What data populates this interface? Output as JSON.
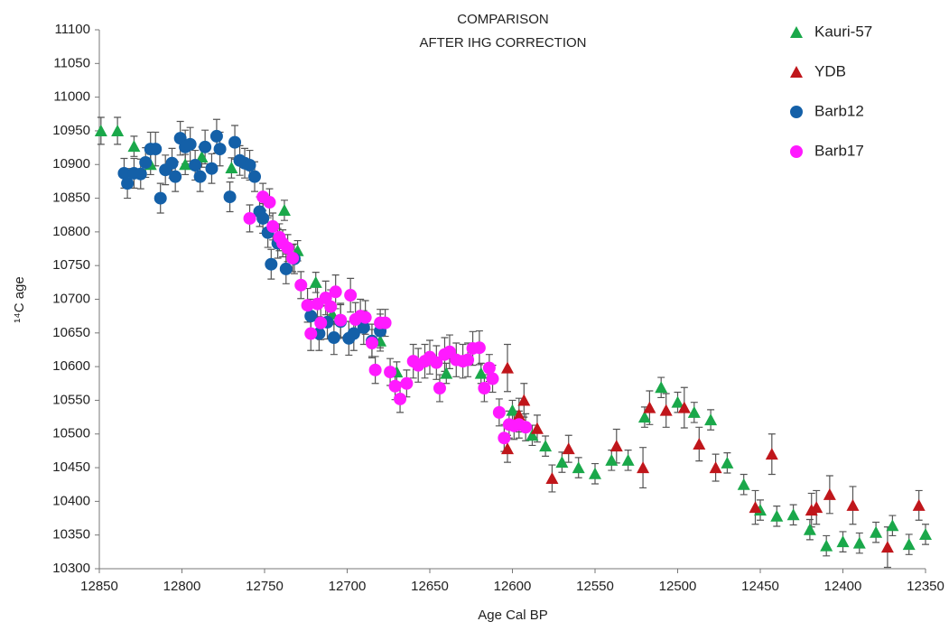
{
  "chart_data": {
    "type": "scatter",
    "title": [
      "COMPARISON",
      "AFTER IHG CORRECTION"
    ],
    "xlabel": "Age Cal BP",
    "ylabel": "¹⁴C age",
    "xlim": [
      12850,
      12350
    ],
    "ylim": [
      10300,
      11100
    ],
    "xticks": [
      12850,
      12800,
      12750,
      12700,
      12650,
      12600,
      12550,
      12500,
      12450,
      12400,
      12350
    ],
    "yticks": [
      10300,
      10350,
      10400,
      10450,
      10500,
      10550,
      10600,
      10650,
      10700,
      10750,
      10800,
      10850,
      10900,
      10950,
      11000,
      11050,
      11100
    ],
    "legend": "upper right",
    "grid": false,
    "series": [
      {
        "name": "Kauri-57",
        "color": "#1aa84a",
        "marker": "triangle",
        "x": [
          12849,
          12839,
          12829,
          12819,
          12798,
          12788,
          12770,
          12738,
          12730,
          12719,
          12709,
          12690,
          12680,
          12670,
          12640,
          12619,
          12600,
          12588,
          12580,
          12570,
          12560,
          12550,
          12540,
          12530,
          12520,
          12510,
          12500,
          12490,
          12480,
          12470,
          12460,
          12450,
          12440,
          12430,
          12420,
          12410,
          12400,
          12390,
          12380,
          12370,
          12360,
          12350
        ],
        "values": [
          10950,
          10950,
          10927,
          10900,
          10900,
          10911,
          10895,
          10832,
          10772,
          10725,
          10678,
          10665,
          10638,
          10592,
          10590,
          10590,
          10535,
          10498,
          10482,
          10458,
          10450,
          10441,
          10461,
          10461,
          10525,
          10569,
          10547,
          10532,
          10521,
          10457,
          10425,
          10387,
          10378,
          10380,
          10358,
          10334,
          10340,
          10338,
          10354,
          10364,
          10336,
          10351
        ],
        "errors": [
          20,
          20,
          15,
          15,
          15,
          15,
          15,
          15,
          15,
          15,
          15,
          15,
          15,
          15,
          15,
          15,
          15,
          15,
          15,
          15,
          15,
          15,
          15,
          15,
          15,
          15,
          15,
          15,
          15,
          15,
          15,
          15,
          15,
          15,
          15,
          15,
          15,
          15,
          15,
          15,
          15,
          15
        ]
      },
      {
        "name": "YDB",
        "color": "#c0161b",
        "marker": "triangle",
        "x": [
          12603,
          12603,
          12596,
          12593,
          12585,
          12576,
          12566,
          12537,
          12521,
          12517,
          12507,
          12496,
          12487,
          12477,
          12453,
          12443,
          12419,
          12416,
          12408,
          12394,
          12373,
          12354
        ],
        "values": [
          10598,
          10478,
          10528,
          10550,
          10508,
          10434,
          10478,
          10482,
          10450,
          10539,
          10535,
          10539,
          10485,
          10450,
          10391,
          10470,
          10387,
          10391,
          10410,
          10394,
          10332,
          10394
        ],
        "errors": [
          35,
          20,
          25,
          25,
          20,
          20,
          20,
          25,
          30,
          25,
          25,
          30,
          25,
          20,
          25,
          30,
          25,
          25,
          28,
          28,
          30,
          22
        ]
      },
      {
        "name": "Barb12",
        "color": "#1460a8",
        "marker": "circle",
        "x": [
          12835,
          12833,
          12829,
          12825,
          12822,
          12819,
          12816,
          12813,
          12810,
          12806,
          12804,
          12801,
          12798,
          12795,
          12792,
          12789,
          12786,
          12782,
          12779,
          12777,
          12771,
          12768,
          12765,
          12762,
          12759,
          12756,
          12753,
          12751,
          12748,
          12746,
          12742,
          12737,
          12732,
          12722,
          12717,
          12712,
          12708,
          12704,
          12699,
          12696,
          12690,
          12685,
          12680
        ],
        "values": [
          10887,
          10872,
          10887,
          10886,
          10903,
          10923,
          10923,
          10850,
          10892,
          10902,
          10882,
          10939,
          10926,
          10930,
          10899,
          10882,
          10926,
          10894,
          10942,
          10923,
          10852,
          10933,
          10906,
          10902,
          10899,
          10882,
          10830,
          10820,
          10799,
          10752,
          10783,
          10745,
          10760,
          10675,
          10649,
          10666,
          10643,
          10667,
          10642,
          10649,
          10658,
          10638,
          10653
        ],
        "errors": [
          22,
          22,
          22,
          22,
          22,
          25,
          25,
          22,
          22,
          22,
          22,
          25,
          25,
          25,
          22,
          22,
          25,
          22,
          25,
          25,
          22,
          25,
          22,
          22,
          22,
          22,
          22,
          22,
          22,
          22,
          22,
          22,
          22,
          25,
          25,
          25,
          25,
          25,
          25,
          25,
          25,
          25,
          25
        ]
      },
      {
        "name": "Barb17",
        "color": "#ff1aff",
        "marker": "circle",
        "x": [
          12759,
          12751,
          12747,
          12745,
          12741,
          12739,
          12736,
          12733,
          12728,
          12724,
          12722,
          12718,
          12716,
          12713,
          12710,
          12707,
          12704,
          12698,
          12695,
          12692,
          12689,
          12685,
          12683,
          12680,
          12677,
          12674,
          12671,
          12668,
          12664,
          12660,
          12657,
          12653,
          12650,
          12646,
          12644,
          12641,
          12638,
          12634,
          12630,
          12627,
          12624,
          12620,
          12617,
          12614,
          12612,
          12608,
          12605,
          12602,
          12599,
          12596,
          12592
        ],
        "values": [
          10820,
          10852,
          10844,
          10808,
          10792,
          10783,
          10776,
          10761,
          10721,
          10691,
          10649,
          10693,
          10665,
          10702,
          10689,
          10711,
          10669,
          10706,
          10670,
          10675,
          10673,
          10635,
          10595,
          10665,
          10665,
          10592,
          10571,
          10552,
          10575,
          10608,
          10602,
          10608,
          10614,
          10606,
          10568,
          10618,
          10622,
          10610,
          10608,
          10610,
          10627,
          10628,
          10568,
          10598,
          10582,
          10532,
          10494,
          10514,
          10512,
          10514,
          10510
        ],
        "errors": [
          20,
          20,
          20,
          20,
          20,
          20,
          20,
          20,
          20,
          25,
          25,
          25,
          25,
          25,
          25,
          25,
          25,
          25,
          25,
          25,
          25,
          20,
          20,
          20,
          20,
          20,
          20,
          20,
          20,
          25,
          25,
          25,
          25,
          25,
          20,
          25,
          25,
          25,
          25,
          25,
          25,
          25,
          20,
          20,
          20,
          20,
          20,
          20,
          20,
          20,
          20
        ]
      }
    ]
  }
}
